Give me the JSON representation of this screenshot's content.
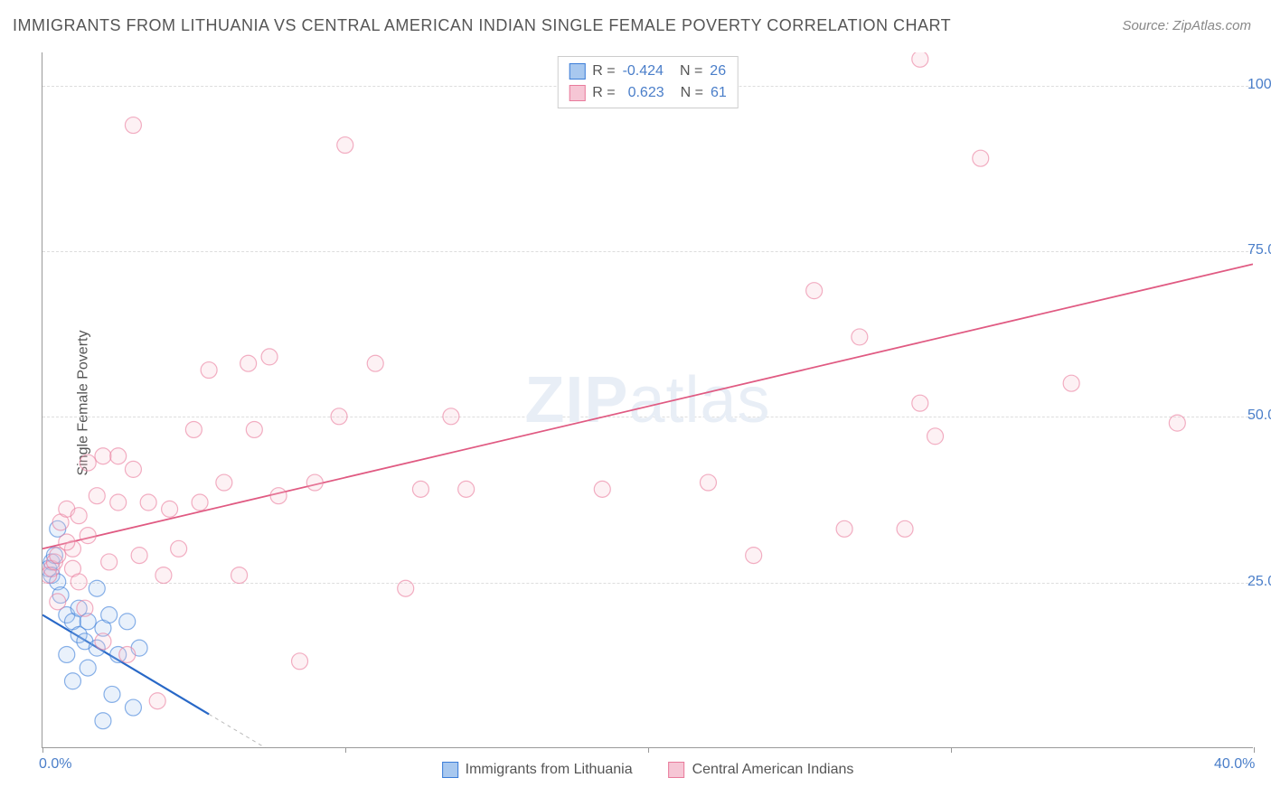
{
  "title": "IMMIGRANTS FROM LITHUANIA VS CENTRAL AMERICAN INDIAN SINGLE FEMALE POVERTY CORRELATION CHART",
  "source": "Source: ZipAtlas.com",
  "y_axis_label": "Single Female Poverty",
  "watermark_bold": "ZIP",
  "watermark_light": "atlas",
  "chart": {
    "type": "scatter",
    "xlim": [
      0,
      40
    ],
    "ylim": [
      0,
      105
    ],
    "x_ticks": [
      0,
      10,
      20,
      30,
      40
    ],
    "x_tick_labels": [
      "0.0%",
      "",
      "",
      "",
      "40.0%"
    ],
    "y_ticks": [
      25,
      50,
      75,
      100
    ],
    "y_tick_labels": [
      "25.0%",
      "50.0%",
      "75.0%",
      "100.0%"
    ],
    "background_color": "#ffffff",
    "grid_color": "#dddddd",
    "marker_radius": 9,
    "marker_stroke_width": 1.2,
    "marker_fill_opacity": 0.25,
    "series": [
      {
        "name": "Immigrants from Lithuania",
        "color_stroke": "#3b7dd8",
        "color_fill": "#a8c8ef",
        "R": "-0.424",
        "N": "26",
        "trend": {
          "x1": 0,
          "y1": 20,
          "x2": 5.5,
          "y2": 5,
          "dashed_extend_x": 8,
          "width": 2.2,
          "color": "#2868c7"
        },
        "points": [
          [
            0.2,
            27
          ],
          [
            0.3,
            28
          ],
          [
            0.3,
            26
          ],
          [
            0.4,
            29
          ],
          [
            0.5,
            25
          ],
          [
            0.5,
            33
          ],
          [
            0.6,
            23
          ],
          [
            0.8,
            14
          ],
          [
            0.8,
            20
          ],
          [
            1.0,
            19
          ],
          [
            1.0,
            10
          ],
          [
            1.2,
            17
          ],
          [
            1.2,
            21
          ],
          [
            1.4,
            16
          ],
          [
            1.5,
            12
          ],
          [
            1.5,
            19
          ],
          [
            1.8,
            24
          ],
          [
            1.8,
            15
          ],
          [
            2.0,
            4
          ],
          [
            2.0,
            18
          ],
          [
            2.2,
            20
          ],
          [
            2.3,
            8
          ],
          [
            2.5,
            14
          ],
          [
            2.8,
            19
          ],
          [
            3.0,
            6
          ],
          [
            3.2,
            15
          ]
        ]
      },
      {
        "name": "Central American Indians",
        "color_stroke": "#e97a9b",
        "color_fill": "#f6c6d5",
        "R": "0.623",
        "N": "61",
        "trend": {
          "x1": 0,
          "y1": 30,
          "x2": 40,
          "y2": 73,
          "width": 1.8,
          "color": "#e05a82"
        },
        "points": [
          [
            0.2,
            26
          ],
          [
            0.3,
            27
          ],
          [
            0.4,
            28
          ],
          [
            0.5,
            29
          ],
          [
            0.5,
            22
          ],
          [
            0.6,
            34
          ],
          [
            0.8,
            36
          ],
          [
            1.0,
            27
          ],
          [
            1.0,
            30
          ],
          [
            1.2,
            25
          ],
          [
            1.2,
            35
          ],
          [
            1.4,
            21
          ],
          [
            1.5,
            32
          ],
          [
            1.8,
            38
          ],
          [
            2.0,
            16
          ],
          [
            2.0,
            44
          ],
          [
            2.2,
            28
          ],
          [
            2.5,
            37
          ],
          [
            2.8,
            14
          ],
          [
            3.0,
            42
          ],
          [
            3.2,
            29
          ],
          [
            3.5,
            37
          ],
          [
            3.8,
            7
          ],
          [
            4.0,
            26
          ],
          [
            4.2,
            36
          ],
          [
            4.5,
            30
          ],
          [
            5.0,
            48
          ],
          [
            5.2,
            37
          ],
          [
            5.5,
            57
          ],
          [
            6.0,
            40
          ],
          [
            6.5,
            26
          ],
          [
            6.8,
            58
          ],
          [
            7.0,
            48
          ],
          [
            7.5,
            59
          ],
          [
            7.8,
            38
          ],
          [
            8.5,
            13
          ],
          [
            9.0,
            40
          ],
          [
            9.8,
            50
          ],
          [
            10.0,
            91
          ],
          [
            11.0,
            58
          ],
          [
            12.0,
            24
          ],
          [
            12.5,
            39
          ],
          [
            13.5,
            50
          ],
          [
            14.0,
            39
          ],
          [
            18.5,
            39
          ],
          [
            22.0,
            40
          ],
          [
            23.5,
            29
          ],
          [
            25.5,
            69
          ],
          [
            26.5,
            33
          ],
          [
            27.0,
            62
          ],
          [
            28.5,
            33
          ],
          [
            29.0,
            52
          ],
          [
            29.0,
            104
          ],
          [
            29.5,
            47
          ],
          [
            31.0,
            89
          ],
          [
            34.0,
            55
          ],
          [
            37.5,
            49
          ],
          [
            1.5,
            43
          ],
          [
            3.0,
            94
          ],
          [
            0.8,
            31
          ],
          [
            2.5,
            44
          ]
        ]
      }
    ]
  },
  "legend_top": {
    "r_label": "R =",
    "n_label": "N ="
  }
}
